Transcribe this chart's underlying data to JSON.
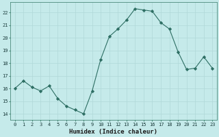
{
  "x": [
    0,
    1,
    2,
    3,
    4,
    5,
    6,
    7,
    8,
    9,
    10,
    11,
    12,
    13,
    14,
    15,
    16,
    17,
    18,
    19,
    20,
    21,
    22,
    23
  ],
  "y": [
    16.0,
    16.6,
    16.1,
    15.8,
    16.2,
    15.2,
    14.6,
    14.3,
    14.0,
    15.8,
    18.3,
    20.1,
    20.7,
    21.4,
    22.3,
    22.2,
    22.1,
    21.2,
    20.7,
    18.9,
    17.5,
    17.6,
    18.5,
    17.6
  ],
  "line_color": "#2d6e63",
  "marker": "D",
  "marker_size": 2.2,
  "bg_color": "#c5eaea",
  "grid_color": "#b0d8d8",
  "xlabel": "Humidex (Indice chaleur)",
  "ylabel": "",
  "yticks": [
    14,
    15,
    16,
    17,
    18,
    19,
    20,
    21,
    22
  ],
  "xticks": [
    0,
    1,
    2,
    3,
    4,
    5,
    6,
    7,
    8,
    9,
    10,
    11,
    12,
    13,
    14,
    15,
    16,
    17,
    18,
    19,
    20,
    21,
    22,
    23
  ],
  "ylim": [
    13.5,
    22.8
  ],
  "xlim": [
    -0.5,
    23.5
  ],
  "tick_fontsize": 5.0,
  "xlabel_fontsize": 6.5
}
